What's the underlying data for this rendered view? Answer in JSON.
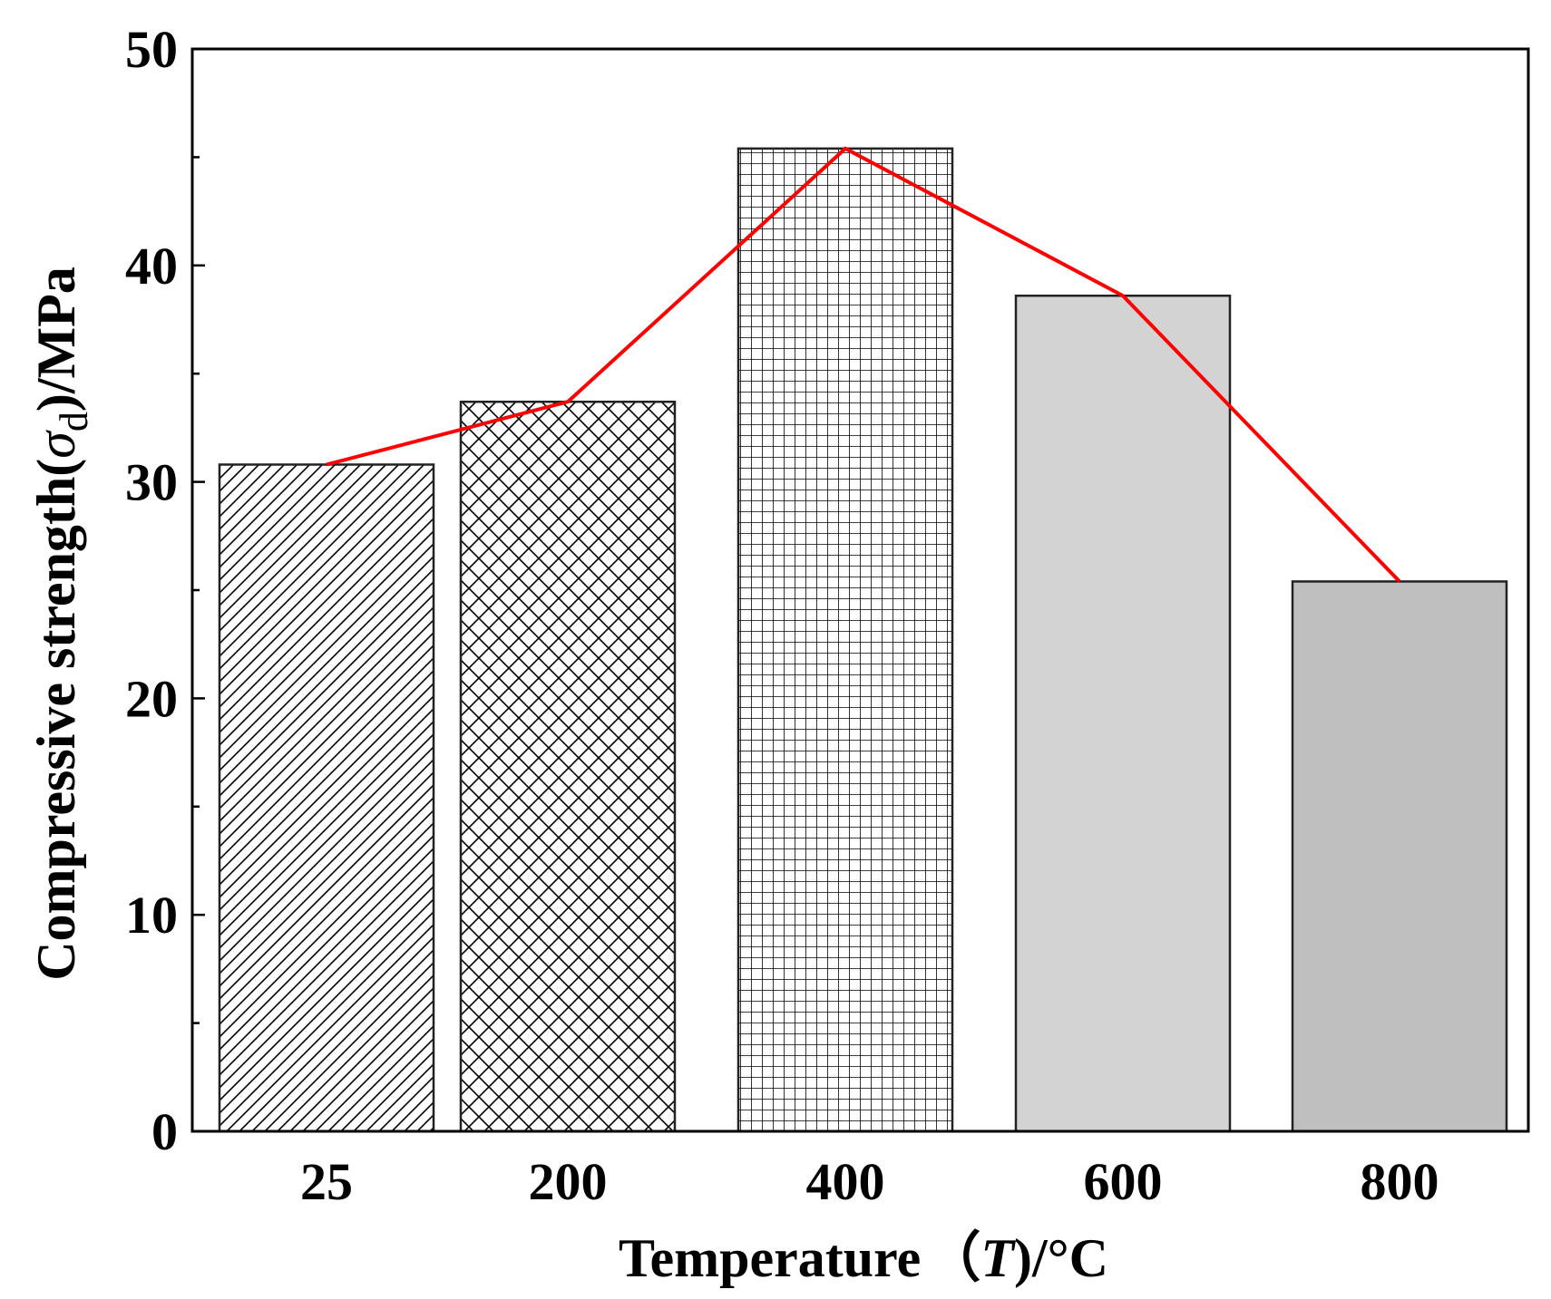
{
  "chart_data": {
    "type": "bar",
    "categories": [
      "25",
      "200",
      "400",
      "600",
      "800"
    ],
    "values": [
      30.8,
      33.7,
      45.4,
      38.6,
      25.4
    ],
    "series": [
      {
        "name": "bars",
        "values": [
          30.8,
          33.7,
          45.4,
          38.6,
          25.4
        ]
      },
      {
        "name": "trend-line",
        "values": [
          30.8,
          33.7,
          45.4,
          38.6,
          25.4
        ],
        "color": "#ff0000"
      }
    ],
    "fills": [
      "diagonal-hatch",
      "crosshatch",
      "grid",
      "#d3d3d3",
      "#bfbfbf"
    ],
    "ylim": [
      0,
      50
    ],
    "yticks": [
      "0",
      "10",
      "20",
      "30",
      "40",
      "50"
    ],
    "title": "",
    "xlabel": {
      "prefix": "Temperature",
      "paren_open": "（",
      "var": "T",
      "suffix": ")/°C"
    },
    "ylabel": {
      "prefix": "Compressive strength(",
      "sym": "σ",
      "sub": "d",
      "suffix": ")/MPa"
    },
    "line_color": "#ff0000"
  }
}
